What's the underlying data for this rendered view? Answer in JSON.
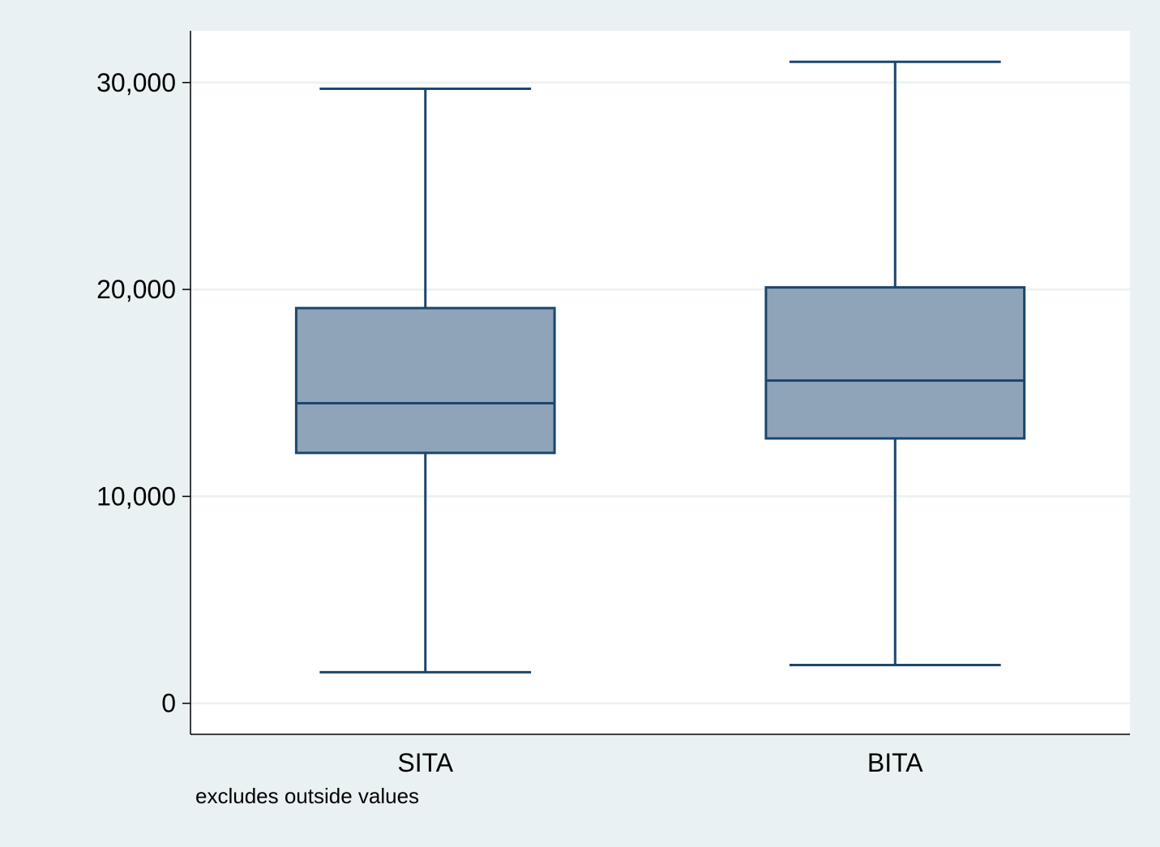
{
  "chart_data": {
    "type": "box",
    "categories": [
      "SITA",
      "BITA"
    ],
    "boxes": [
      {
        "category": "SITA",
        "whisker_low": 1500,
        "q1": 12100,
        "median": 14500,
        "q3": 19100,
        "whisker_high": 29700
      },
      {
        "category": "BITA",
        "whisker_low": 1850,
        "q1": 12800,
        "median": 15600,
        "q3": 20100,
        "whisker_high": 31000
      }
    ],
    "yticks": [
      0,
      10000,
      20000,
      30000
    ],
    "ytick_labels": [
      "0",
      "10,000",
      "20,000",
      "30,000"
    ],
    "ylim": [
      -1500,
      32500
    ],
    "grid": true,
    "note": "excludes outside values",
    "colors": {
      "box_fill": "#8fa4b9",
      "box_stroke": "#1a476f",
      "grid": "#eaf1f3",
      "plot_bg": "#ffffff",
      "figure_bg": "#eaf1f3"
    }
  }
}
